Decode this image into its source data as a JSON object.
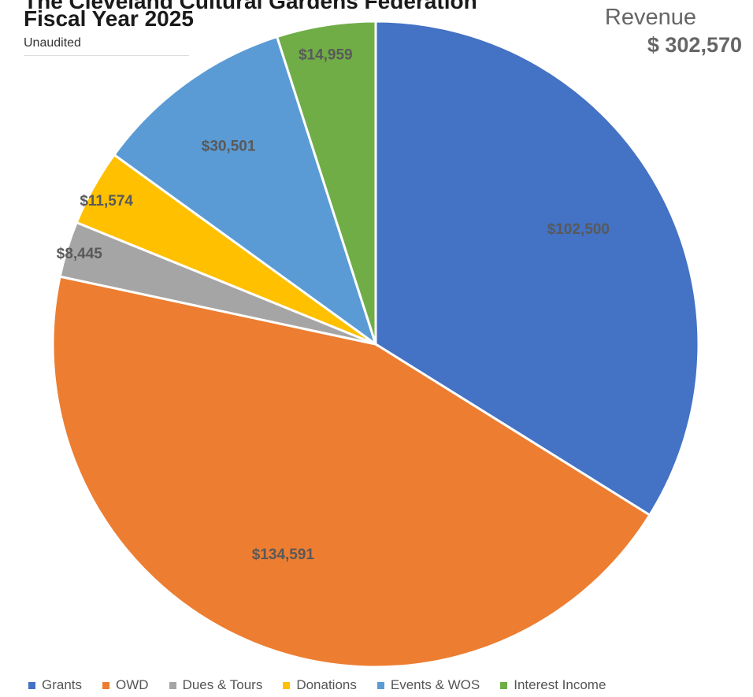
{
  "header": {
    "title_line1": "The Cleveland Cultural Gardens Federation",
    "title_line2": "Fiscal Year 2025",
    "subtitle": "Unaudited",
    "revenue_label": "Revenue",
    "revenue_total": "$ 302,570"
  },
  "chart_data": {
    "type": "pie",
    "title": "Revenue",
    "total": 302570,
    "start_angle_deg": 0,
    "direction": "clockwise",
    "legend_position": "bottom",
    "slices": [
      {
        "name": "Grants",
        "value": 102500,
        "label": "$102,500",
        "color": "#4472C4"
      },
      {
        "name": "OWD",
        "value": 134591,
        "label": "$134,591",
        "color": "#ED7D31"
      },
      {
        "name": "Dues & Tours",
        "value": 8445,
        "label": "$8,445",
        "color": "#A5A5A5"
      },
      {
        "name": "Donations",
        "value": 11574,
        "label": "$11,574",
        "color": "#FFC000"
      },
      {
        "name": "Events & WOS",
        "value": 30501,
        "label": "$30,501",
        "color": "#5B9BD5"
      },
      {
        "name": "Interest Income",
        "value": 14959,
        "label": "$14,959",
        "color": "#70AD47"
      }
    ]
  }
}
